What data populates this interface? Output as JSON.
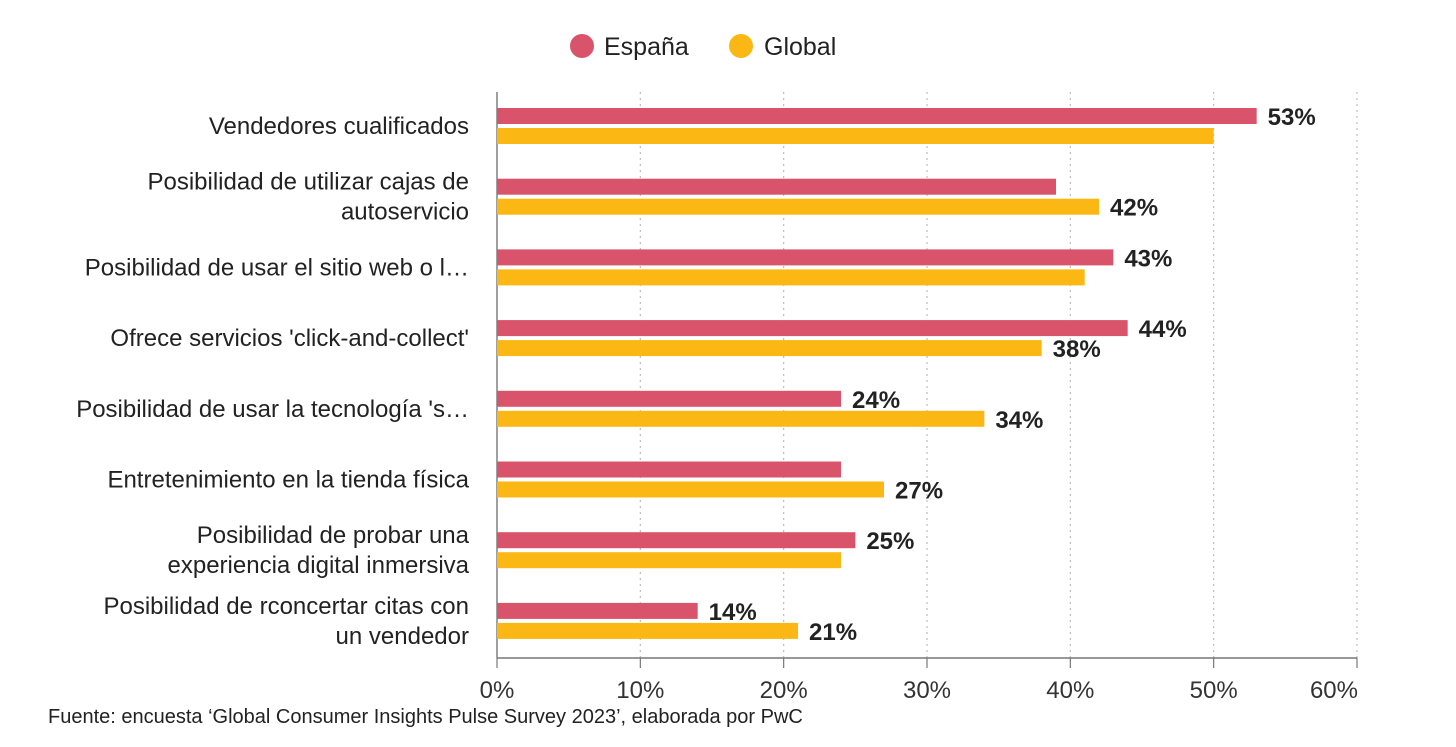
{
  "chart_data": {
    "type": "bar",
    "orientation": "horizontal",
    "categories": [
      [
        "Vendedores cualificados"
      ],
      [
        "Posibilidad de utilizar cajas de",
        "autoservicio"
      ],
      [
        "Posibilidad de usar el sitio web o l…"
      ],
      [
        "Ofrece servicios 'click-and-collect'"
      ],
      [
        "Posibilidad de usar la tecnología 's…"
      ],
      [
        "Entretenimiento en la tienda física"
      ],
      [
        "Posibilidad de probar una",
        "experiencia digital inmersiva"
      ],
      [
        "Posibilidad de rconcertar citas con",
        "un vendedor"
      ]
    ],
    "series": [
      {
        "name": "España",
        "color": "#d9546b",
        "values": [
          53,
          39,
          43,
          44,
          24,
          24,
          25,
          14
        ],
        "labels": [
          "53%",
          "",
          "43%",
          "44%",
          "24%",
          "",
          "25%",
          "14%"
        ]
      },
      {
        "name": "Global",
        "color": "#fbb713",
        "values": [
          50,
          42,
          41,
          38,
          34,
          27,
          24,
          21
        ],
        "labels": [
          "",
          "42%",
          "",
          "38%",
          "34%",
          "27%",
          "",
          "21%"
        ]
      }
    ],
    "xlim": [
      0,
      60
    ],
    "xticks": [
      "0%",
      "10%",
      "20%",
      "30%",
      "40%",
      "50%",
      "60%"
    ],
    "grid": "vertical dotted",
    "legend": "top-center",
    "source": "Fuente: encuesta ‘Global Consumer Insights Pulse Survey 2023’, elaborada por PwC"
  }
}
